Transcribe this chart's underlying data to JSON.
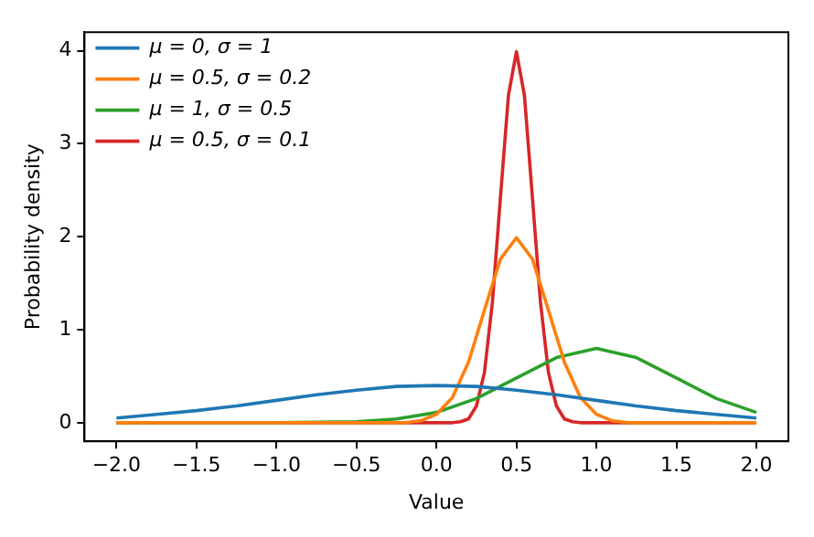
{
  "chart_data": {
    "type": "line",
    "xlabel": "Value",
    "ylabel": "Probability density",
    "xlim": [
      -2.2,
      2.2
    ],
    "ylim": [
      -0.2,
      4.2
    ],
    "xticks": [
      {
        "value": -2,
        "label": "−2.0"
      },
      {
        "value": -1.5,
        "label": "−1.5"
      },
      {
        "value": -1,
        "label": "−1.0"
      },
      {
        "value": -0.5,
        "label": "−0.5"
      },
      {
        "value": 0,
        "label": "0.0"
      },
      {
        "value": 0.5,
        "label": "0.5"
      },
      {
        "value": 1,
        "label": "1.0"
      },
      {
        "value": 1.5,
        "label": "1.5"
      },
      {
        "value": 2,
        "label": "2.0"
      }
    ],
    "yticks": [
      0,
      1,
      2,
      3,
      4
    ],
    "grid": false,
    "legend": "top left",
    "marker": "none",
    "line_style": "solid",
    "series": [
      {
        "name": "μ = 0, σ = 1",
        "color": "#1f77b4",
        "x": [
          -2,
          -1.75,
          -1.5,
          -1.25,
          -1,
          -0.75,
          -0.5,
          -0.25,
          0,
          0.25,
          0.5,
          0.75,
          1,
          1.25,
          1.5,
          1.75,
          2
        ],
        "values": [
          0.05,
          0.09,
          0.13,
          0.18,
          0.24,
          0.3,
          0.35,
          0.39,
          0.4,
          0.39,
          0.35,
          0.3,
          0.24,
          0.18,
          0.13,
          0.09,
          0.05
        ]
      },
      {
        "name": "μ = 0.5, σ = 0.2",
        "color": "#ff7f0e",
        "x": [
          -2,
          -0.5,
          -0.2,
          -0.1,
          0,
          0.1,
          0.2,
          0.3,
          0.4,
          0.5,
          0.6,
          0.7,
          0.8,
          0.9,
          1,
          1.1,
          1.2,
          1.5,
          2
        ],
        "values": [
          0,
          0,
          0,
          0.02,
          0.09,
          0.27,
          0.65,
          1.21,
          1.76,
          1.99,
          1.76,
          1.21,
          0.65,
          0.27,
          0.09,
          0.02,
          0,
          0,
          0
        ]
      },
      {
        "name": "μ = 1, σ = 0.5",
        "color": "#2ca02c",
        "x": [
          -2,
          -1,
          -0.5,
          -0.25,
          0,
          0.25,
          0.5,
          0.75,
          1,
          1.25,
          1.5,
          1.75,
          2
        ],
        "values": [
          0,
          0,
          0.01,
          0.04,
          0.11,
          0.26,
          0.48,
          0.7,
          0.8,
          0.7,
          0.48,
          0.26,
          0.11
        ]
      },
      {
        "name": "μ = 0.5, σ = 0.1",
        "color": "#d62728",
        "x": [
          -2,
          0.1,
          0.15,
          0.2,
          0.25,
          0.3,
          0.35,
          0.4,
          0.45,
          0.5,
          0.55,
          0.6,
          0.65,
          0.7,
          0.75,
          0.8,
          0.85,
          0.9,
          2
        ],
        "values": [
          0,
          0,
          0.01,
          0.04,
          0.18,
          0.54,
          1.3,
          2.42,
          3.52,
          3.99,
          3.52,
          2.42,
          1.3,
          0.54,
          0.18,
          0.04,
          0.01,
          0,
          0
        ]
      }
    ]
  }
}
